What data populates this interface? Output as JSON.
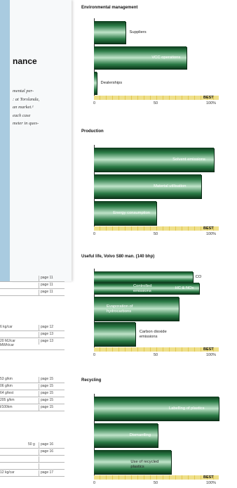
{
  "left_page": {
    "heading": "nance",
    "paragraph_lines": [
      "mental per-",
      ": at Torslanda,",
      "an market.¹",
      " each case",
      "meter in ques-"
    ],
    "table_groups": [
      {
        "rows": [
          {
            "value": "",
            "page": "page 11"
          },
          {
            "value": "",
            "page": "page 11"
          },
          {
            "value": "",
            "page": "page 11"
          }
        ]
      },
      {
        "rows": [
          {
            "value": "6 kg/car",
            "page": "page 12"
          },
          {
            "value": "",
            "page": "page 13"
          },
          {
            "value": "20 MJ/car\nMWh/car",
            "page": "page 13"
          }
        ]
      },
      {
        "rows": [
          {
            "value": "53 g/km",
            "page": "page 15"
          },
          {
            "value": "06 g/km",
            "page": "page 15"
          },
          {
            "value": "64 g/test",
            "page": "page 15"
          },
          {
            "value": "205 g/km",
            "page": "page 15"
          },
          {
            "value": "l/100km",
            "page": "page 15"
          }
        ]
      },
      {
        "rows": [
          {
            "value": "50 g",
            "page": "page 16"
          },
          {
            "value": "",
            "page": "page 16"
          },
          {
            "value": "",
            "page": ""
          },
          {
            "value": "",
            "page": ""
          },
          {
            "value": "12 kg/car",
            "page": "page 17"
          }
        ]
      }
    ]
  },
  "scale": {
    "ticks": [
      "0",
      "50",
      "100%"
    ],
    "best_label": "BEST"
  },
  "chart_data": [
    {
      "type": "bar",
      "title": "Environmental management",
      "categories": [
        "Suppliers",
        "VCC operations",
        "Dealerships"
      ],
      "values": [
        25,
        74,
        2
      ],
      "xlim": [
        0,
        100
      ]
    },
    {
      "type": "bar",
      "title": "Production",
      "categories": [
        "Solvent emissions",
        "Material utilisation",
        "Energy consumption"
      ],
      "values": [
        96,
        86,
        50
      ],
      "xlim": [
        0,
        100
      ]
    },
    {
      "type": "bar",
      "title": "Useful life, Volvo S80 man. (140 bhp)",
      "categories": [
        "CO",
        "HC & NOx",
        "Evaporation of hydrocarbons",
        "Carbon dioxide emissions"
      ],
      "inner_labels": [
        "",
        "Controlled emissions",
        "",
        ""
      ],
      "values": [
        79,
        84,
        68,
        33
      ],
      "xlim": [
        0,
        100
      ]
    },
    {
      "type": "bar",
      "title": "Recycling",
      "categories": [
        "Labelling of plastics",
        "Dismantling",
        "Use of recycled plastics"
      ],
      "values": [
        100,
        51,
        62
      ],
      "xlim": [
        0,
        100
      ]
    }
  ]
}
